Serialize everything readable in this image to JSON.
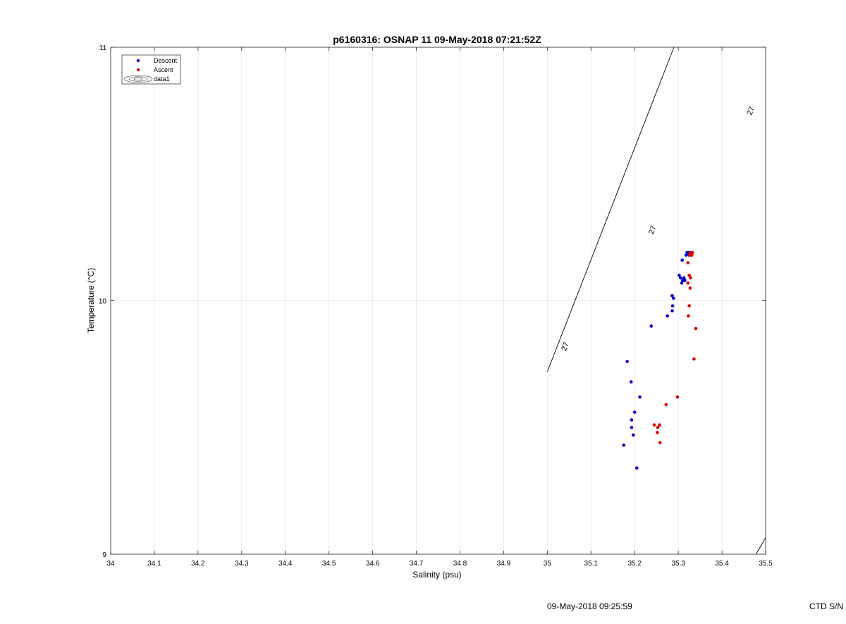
{
  "footer": {
    "timestamp": "09-May-2018 09:25:59",
    "ctd_label": "CTD S/N"
  },
  "colors": {
    "descent": "#0000cc",
    "ascent": "#dd0000",
    "grid": "#e6e6e6",
    "axis": "#262626"
  },
  "chart_data": {
    "type": "scatter",
    "title": "p6160316: OSNAP 11 09-May-2018 07:21:52Z",
    "xlabel": "Salinity (psu)",
    "ylabel": "Temperature (°C)",
    "xlim": [
      34,
      35.5
    ],
    "ylim": [
      9,
      11
    ],
    "x_ticks": [
      34,
      34.1,
      34.2,
      34.3,
      34.4,
      34.5,
      34.6,
      34.7,
      34.8,
      34.9,
      35,
      35.1,
      35.2,
      35.3,
      35.4,
      35.5
    ],
    "x_tick_labels": [
      "34",
      "34.1",
      "34.2",
      "34.3",
      "34.4",
      "34.5",
      "34.6",
      "34.7",
      "34.8",
      "34.9",
      "35",
      "35.1",
      "35.2",
      "35.3",
      "35.4",
      "35.5"
    ],
    "y_ticks": [
      9,
      10,
      11
    ],
    "y_tick_labels": [
      "9",
      "10",
      "11"
    ],
    "grid": true,
    "legend_position": "top-left",
    "legend": [
      "Descent",
      "Ascent",
      "data1"
    ],
    "series": [
      {
        "name": "Descent",
        "points": [
          [
            35.175,
            9.43
          ],
          [
            35.183,
            9.76
          ],
          [
            35.192,
            9.68
          ],
          [
            35.193,
            9.53
          ],
          [
            35.193,
            9.5
          ],
          [
            35.197,
            9.47
          ],
          [
            35.2,
            9.56
          ],
          [
            35.205,
            9.34
          ],
          [
            35.212,
            9.62
          ],
          [
            35.238,
            9.9
          ],
          [
            35.275,
            9.94
          ],
          [
            35.286,
            9.96
          ],
          [
            35.287,
            9.98
          ],
          [
            35.286,
            10.02
          ],
          [
            35.289,
            10.01
          ],
          [
            35.302,
            10.1
          ],
          [
            35.305,
            10.09
          ],
          [
            35.308,
            10.07
          ],
          [
            35.31,
            10.08
          ],
          [
            35.312,
            10.08
          ],
          [
            35.313,
            10.09
          ],
          [
            35.315,
            10.08
          ],
          [
            35.309,
            10.16
          ],
          [
            35.318,
            10.18
          ],
          [
            35.32,
            10.19
          ],
          [
            35.322,
            10.19
          ],
          [
            35.325,
            10.18
          ],
          [
            35.323,
            10.19
          ]
        ]
      },
      {
        "name": "Ascent",
        "points": [
          [
            35.245,
            9.51
          ],
          [
            35.252,
            9.48
          ],
          [
            35.253,
            9.5
          ],
          [
            35.257,
            9.51
          ],
          [
            35.258,
            9.44
          ],
          [
            35.272,
            9.59
          ],
          [
            35.298,
            9.62
          ],
          [
            35.323,
            9.94
          ],
          [
            35.325,
            9.98
          ],
          [
            35.327,
            10.05
          ],
          [
            35.322,
            10.07
          ],
          [
            35.325,
            10.1
          ],
          [
            35.328,
            10.09
          ],
          [
            35.336,
            9.77
          ],
          [
            35.34,
            9.89
          ],
          [
            35.322,
            10.15
          ],
          [
            35.326,
            10.18
          ],
          [
            35.328,
            10.19
          ],
          [
            35.33,
            10.18
          ],
          [
            35.332,
            10.19
          ],
          [
            35.329,
            10.19
          ],
          [
            35.331,
            10.18
          ]
        ]
      }
    ],
    "contour": {
      "name": "data1",
      "level_label": "27",
      "lines": [
        [
          [
            35.0,
            9.72
          ],
          [
            35.29,
            11.0
          ]
        ],
        [
          [
            35.478,
            9.0
          ],
          [
            35.5,
            9.065
          ]
        ]
      ],
      "label_positions": [
        [
          35.04,
          9.82
        ],
        [
          35.24,
          10.28
        ],
        [
          35.465,
          10.75
        ]
      ]
    }
  }
}
